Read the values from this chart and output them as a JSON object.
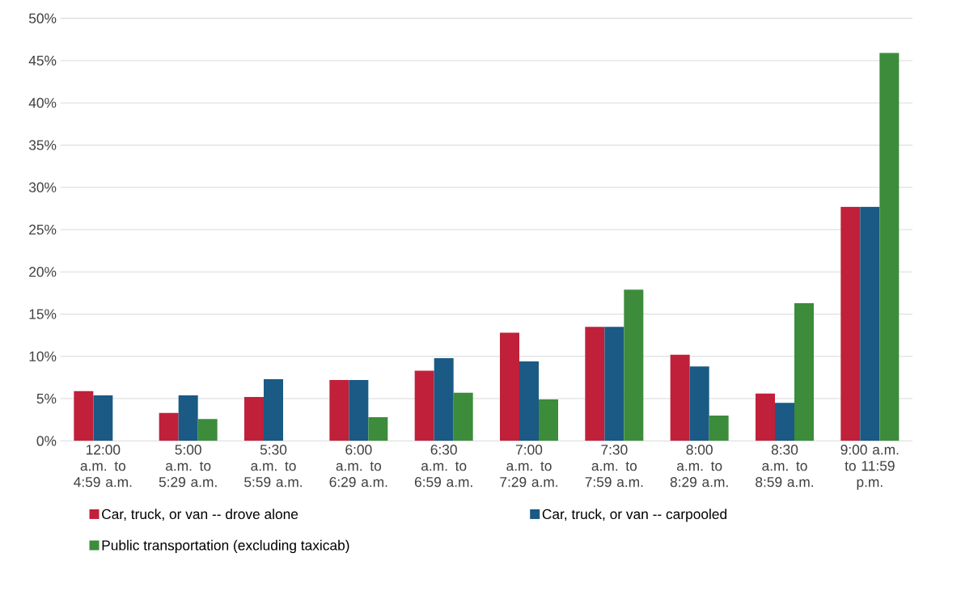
{
  "chart_data": {
    "type": "bar",
    "categories": [
      "12:00 a.m. to 4:59 a.m.",
      "5:00 a.m. to 5:29 a.m.",
      "5:30 a.m. to 5:59 a.m.",
      "6:00 a.m. to 6:29 a.m.",
      "6:30 a.m. to 6:59 a.m.",
      "7:00 a.m. to 7:29 a.m.",
      "7:30 a.m. to 7:59 a.m.",
      "8:00 a.m. to 8:29 a.m.",
      "8:30 a.m. to 8:59 a.m.",
      "9:00 a.m. to 11:59 p.m."
    ],
    "series": [
      {
        "name": "Car, truck, or van -- drove alone",
        "color": "#c0203a",
        "values": [
          5.9,
          3.3,
          5.2,
          7.2,
          8.3,
          12.8,
          13.5,
          10.2,
          5.6,
          27.7
        ]
      },
      {
        "name": "Car, truck, or van -- carpooled",
        "color": "#1a5a84",
        "values": [
          5.4,
          5.4,
          7.3,
          7.2,
          9.8,
          9.4,
          13.5,
          8.8,
          4.5,
          27.7
        ]
      },
      {
        "name": "Public transportation (excluding taxicab)",
        "color": "#3c8c3c",
        "values": [
          null,
          2.6,
          null,
          2.8,
          5.7,
          4.9,
          17.9,
          3.0,
          16.3,
          45.9
        ]
      }
    ],
    "ylim": [
      0,
      50
    ],
    "yticks": [
      {
        "value": 0,
        "label": "0%"
      },
      {
        "value": 5,
        "label": "5%"
      },
      {
        "value": 10,
        "label": "10%"
      },
      {
        "value": 15,
        "label": "15%"
      },
      {
        "value": 20,
        "label": "20%"
      },
      {
        "value": 25,
        "label": "25%"
      },
      {
        "value": 30,
        "label": "30%"
      },
      {
        "value": 35,
        "label": "35%"
      },
      {
        "value": 40,
        "label": "40%"
      },
      {
        "value": 45,
        "label": "45%"
      },
      {
        "value": 50,
        "label": "50%"
      }
    ],
    "grid": "y",
    "legend": "bottom"
  }
}
